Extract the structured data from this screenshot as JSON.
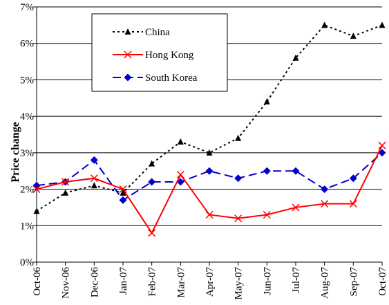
{
  "chart_data": {
    "type": "line",
    "title": "",
    "xlabel": "",
    "ylabel": "Price change",
    "ylim": [
      0,
      7
    ],
    "yticks": [
      0,
      1,
      2,
      3,
      4,
      5,
      6,
      7
    ],
    "ytick_labels": [
      "0%",
      "1%",
      "2%",
      "3%",
      "4%",
      "5%",
      "6%",
      "7%"
    ],
    "categories": [
      "Oct-06",
      "Nov-06",
      "Dec-06",
      "Jan-07",
      "Feb-07",
      "Mar-07",
      "Apr-07",
      "May-07",
      "Jun-07",
      "Jul-07",
      "Aug-07",
      "Sep-07",
      "Oct-07"
    ],
    "grid": true,
    "legend_position": "top-left",
    "series": [
      {
        "name": "China",
        "color": "#000000",
        "line_style": "dotted",
        "marker": "triangle",
        "values": [
          1.4,
          1.9,
          2.1,
          1.9,
          2.7,
          3.3,
          3.0,
          3.4,
          4.4,
          5.6,
          6.5,
          6.2,
          6.5
        ]
      },
      {
        "name": "Hong Kong",
        "color": "#ff0000",
        "line_style": "solid",
        "marker": "x",
        "values": [
          2.0,
          2.2,
          2.3,
          2.0,
          0.8,
          2.4,
          1.3,
          1.2,
          1.3,
          1.5,
          1.6,
          1.6,
          3.2
        ]
      },
      {
        "name": "South Korea",
        "color": "#0000cc",
        "line_style": "dashed",
        "marker": "diamond",
        "values": [
          2.1,
          2.2,
          2.8,
          1.7,
          2.2,
          2.2,
          2.5,
          2.3,
          2.5,
          2.5,
          2.0,
          2.3,
          3.0
        ]
      }
    ]
  }
}
